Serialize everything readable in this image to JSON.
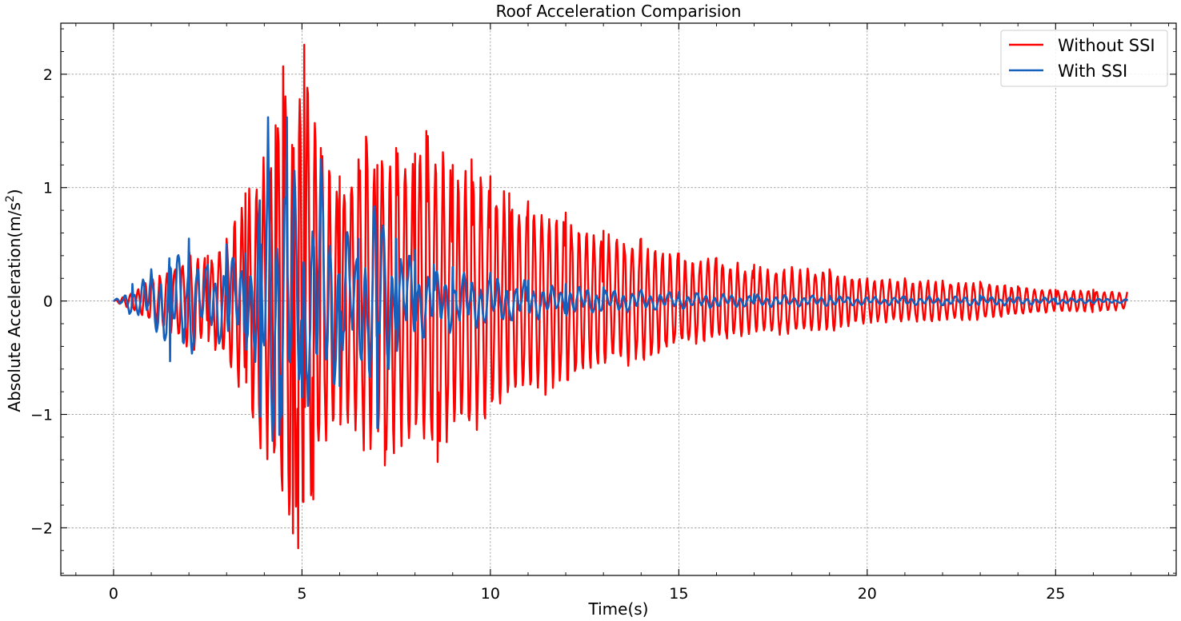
{
  "chart_data": {
    "type": "line",
    "title": "Roof Acceleration Comparision",
    "xlabel": "Time(s)",
    "ylabel_prefix": "Absolute Acceleration(m/s",
    "ylabel_sup": "2",
    "ylabel_suffix": ")",
    "xlim": [
      -1.4,
      28.2
    ],
    "ylim": [
      -2.42,
      2.45
    ],
    "x_ticks": [
      0,
      5,
      10,
      15,
      20,
      25
    ],
    "y_ticks": [
      -2,
      -1,
      0,
      1,
      2
    ],
    "x_tick_labels": [
      "0",
      "5",
      "10",
      "15",
      "20",
      "25"
    ],
    "y_tick_labels": [
      "−2",
      "−1",
      "0",
      "1",
      "2"
    ],
    "grid": true,
    "legend_position": "top-right",
    "duration_s": 26.9,
    "series": [
      {
        "name": "Without SSI",
        "color": "#ff0000",
        "dominant_frequency_hz": 5.0,
        "sampled_peaks": [
          [
            0.0,
            0.0
          ],
          [
            0.5,
            0.08
          ],
          [
            1.0,
            0.2
          ],
          [
            1.5,
            0.3
          ],
          [
            2.0,
            0.45
          ],
          [
            2.5,
            0.4
          ],
          [
            3.0,
            0.55
          ],
          [
            3.5,
            0.95
          ],
          [
            3.9,
            -1.3
          ],
          [
            4.3,
            1.55
          ],
          [
            4.5,
            2.07
          ],
          [
            4.75,
            -2.05
          ],
          [
            4.9,
            -2.18
          ],
          [
            5.05,
            2.26
          ],
          [
            5.3,
            -1.75
          ],
          [
            5.5,
            1.35
          ],
          [
            6.0,
            1.1
          ],
          [
            6.5,
            1.25
          ],
          [
            6.7,
            1.45
          ],
          [
            7.0,
            1.2
          ],
          [
            7.2,
            -1.45
          ],
          [
            7.5,
            1.35
          ],
          [
            8.0,
            1.3
          ],
          [
            8.3,
            1.5
          ],
          [
            8.6,
            -1.42
          ],
          [
            9.0,
            1.2
          ],
          [
            9.5,
            1.25
          ],
          [
            10.0,
            1.1
          ],
          [
            10.5,
            0.95
          ],
          [
            11.0,
            0.88
          ],
          [
            12.0,
            0.78
          ],
          [
            13.0,
            0.62
          ],
          [
            14.0,
            0.55
          ],
          [
            15.0,
            0.42
          ],
          [
            16.0,
            0.38
          ],
          [
            17.0,
            0.32
          ],
          [
            18.0,
            0.3
          ],
          [
            19.0,
            0.28
          ],
          [
            20.0,
            0.2
          ],
          [
            21.0,
            0.2
          ],
          [
            22.0,
            0.18
          ],
          [
            23.0,
            0.17
          ],
          [
            24.0,
            0.13
          ],
          [
            25.0,
            0.1
          ],
          [
            26.0,
            0.1
          ],
          [
            26.9,
            0.08
          ]
        ]
      },
      {
        "name": "With SSI",
        "color": "#1560bd",
        "dominant_frequency_hz": 4.2,
        "sampled_peaks": [
          [
            0.0,
            0.0
          ],
          [
            0.5,
            0.15
          ],
          [
            1.0,
            0.28
          ],
          [
            1.5,
            -0.53
          ],
          [
            2.0,
            0.55
          ],
          [
            2.5,
            0.32
          ],
          [
            3.0,
            0.5
          ],
          [
            3.5,
            0.42
          ],
          [
            3.9,
            -1.02
          ],
          [
            4.1,
            1.62
          ],
          [
            4.4,
            -1.18
          ],
          [
            4.6,
            1.62
          ],
          [
            5.0,
            -0.85
          ],
          [
            5.5,
            1.25
          ],
          [
            6.0,
            -0.75
          ],
          [
            6.5,
            0.55
          ],
          [
            7.0,
            -1.12
          ],
          [
            7.5,
            0.55
          ],
          [
            8.0,
            0.45
          ],
          [
            8.5,
            0.32
          ],
          [
            9.0,
            0.3
          ],
          [
            10.0,
            0.25
          ],
          [
            11.0,
            0.18
          ],
          [
            12.0,
            0.15
          ],
          [
            13.0,
            0.12
          ],
          [
            14.0,
            0.1
          ],
          [
            15.0,
            0.08
          ],
          [
            17.0,
            0.06
          ],
          [
            19.0,
            0.05
          ],
          [
            21.0,
            0.04
          ],
          [
            23.0,
            0.05
          ],
          [
            25.0,
            0.03
          ],
          [
            26.9,
            0.02
          ]
        ]
      }
    ]
  }
}
